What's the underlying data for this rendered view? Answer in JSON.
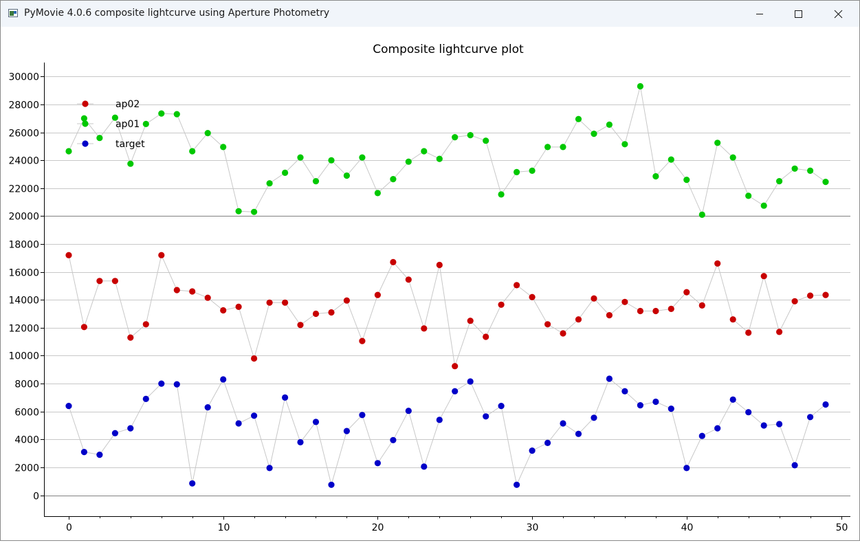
{
  "window": {
    "title": "PyMovie 4.0.6 composite lightcurve using Aperture Photometry",
    "controls": [
      "minimize-icon",
      "maximize-icon",
      "close-icon"
    ]
  },
  "chart_data": {
    "type": "scatter",
    "title": "Composite lightcurve plot",
    "xlabel": "",
    "ylabel": "",
    "xlim": [
      -1.6,
      50.6
    ],
    "ylim": [
      -1500,
      31000
    ],
    "xticks": [
      0,
      10,
      20,
      30,
      40,
      50
    ],
    "yticks": [
      0,
      2000,
      4000,
      6000,
      8000,
      10000,
      12000,
      14000,
      16000,
      18000,
      20000,
      22000,
      24000,
      26000,
      28000,
      30000
    ],
    "grid": true,
    "legend_position": "top-left",
    "connecting_line_color": "#c8c8c8",
    "x": [
      0,
      1,
      2,
      3,
      4,
      5,
      6,
      7,
      8,
      9,
      10,
      11,
      12,
      13,
      14,
      15,
      16,
      17,
      18,
      19,
      20,
      21,
      22,
      23,
      24,
      25,
      26,
      27,
      28,
      29,
      30,
      31,
      32,
      33,
      34,
      35,
      36,
      37,
      38,
      39,
      40,
      41,
      42,
      43,
      44,
      45,
      46,
      47,
      48,
      49
    ],
    "series": [
      {
        "name": "ap02",
        "color": "#c80000",
        "values": [
          17200,
          12050,
          15350,
          15350,
          11300,
          12250,
          17200,
          14700,
          14600,
          14150,
          13250,
          13500,
          9800,
          13800,
          13800,
          12200,
          13000,
          13100,
          13950,
          11050,
          14350,
          16700,
          15450,
          11950,
          16500,
          9250,
          12500,
          11350,
          13650,
          15050,
          14200,
          12250,
          11600,
          12600,
          14100,
          12900,
          13850,
          13200,
          13200,
          13350,
          14550,
          13600,
          16600,
          12600,
          11650,
          15700,
          11700,
          13900,
          14300,
          14350
        ]
      },
      {
        "name": "ap01",
        "color": "#00c800",
        "values": [
          24650,
          27000,
          25600,
          27050,
          23750,
          26600,
          27350,
          27300,
          24650,
          25950,
          24950,
          20350,
          20300,
          22350,
          23100,
          24200,
          22500,
          24000,
          22900,
          24200,
          21650,
          22650,
          23900,
          24650,
          24100,
          25650,
          25800,
          25400,
          21550,
          23150,
          23250,
          24950,
          24950,
          26950,
          25900,
          26550,
          25150,
          29300,
          22850,
          24050,
          22600,
          20100,
          25250,
          24200,
          21450,
          20750,
          22500,
          23400,
          23250,
          22450
        ]
      },
      {
        "name": "target",
        "color": "#0000c8",
        "values": [
          6400,
          3100,
          2900,
          4450,
          4800,
          6900,
          8000,
          7950,
          850,
          6300,
          8300,
          5150,
          5700,
          1950,
          7000,
          3800,
          5250,
          750,
          4600,
          5750,
          2300,
          3950,
          6050,
          2050,
          5400,
          7450,
          8150,
          5650,
          6400,
          750,
          3200,
          3750,
          5150,
          4400,
          5550,
          8350,
          7450,
          6450,
          6700,
          6200,
          1950,
          4250,
          4800,
          6850,
          5950,
          5000,
          5100,
          2150,
          5600,
          6500
        ]
      }
    ],
    "legend_order": [
      "ap02",
      "ap01",
      "target"
    ]
  }
}
